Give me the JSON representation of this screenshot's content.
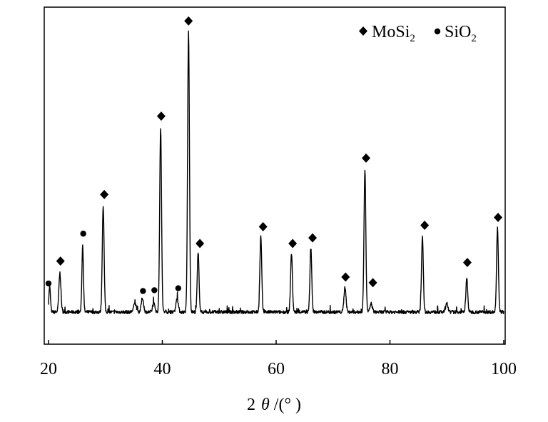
{
  "chart_data": {
    "type": "line",
    "x_tick_labels": [
      "20",
      "40",
      "60",
      "80",
      "100"
    ],
    "x_ticks": [
      20,
      40,
      60,
      80,
      100
    ],
    "xlim": [
      20,
      100
    ],
    "xlabel": {
      "prefix": "2",
      "theta": "θ",
      "suffix": " /(°  )"
    },
    "ylabel": "",
    "ylim": [
      0,
      1.1
    ],
    "grid": false,
    "legend": {
      "placement": "top-right",
      "entries": [
        {
          "symbol": "diamond",
          "base": "MoSi",
          "sub": "2"
        },
        {
          "symbol": "dot",
          "base": "SiO",
          "sub": "2"
        }
      ]
    },
    "peaks": [
      {
        "x": 20.2,
        "y": 0.09,
        "width": 0.14,
        "phase": "SiO2"
      },
      {
        "x": 22.0,
        "y": 0.14,
        "width": 0.18,
        "phase": "MoSi2"
      },
      {
        "x": 26.0,
        "y": 0.24,
        "width": 0.14,
        "phase": "SiO2"
      },
      {
        "x": 29.6,
        "y": 0.38,
        "width": 0.16,
        "phase": "MoSi2"
      },
      {
        "x": 35.2,
        "y": 0.03,
        "width": 0.25,
        "phase": ""
      },
      {
        "x": 36.5,
        "y": 0.05,
        "width": 0.2,
        "phase": "SiO2"
      },
      {
        "x": 38.5,
        "y": 0.03,
        "width": 0.2,
        "phase": "SiO2"
      },
      {
        "x": 39.7,
        "y": 0.66,
        "width": 0.16,
        "phase": "MoSi2"
      },
      {
        "x": 42.6,
        "y": 0.05,
        "width": 0.2,
        "phase": "SiO2"
      },
      {
        "x": 44.6,
        "y": 1.0,
        "width": 0.16,
        "phase": "MoSi2"
      },
      {
        "x": 46.3,
        "y": 0.21,
        "width": 0.16,
        "phase": "MoSi2"
      },
      {
        "x": 57.3,
        "y": 0.27,
        "width": 0.16,
        "phase": "MoSi2"
      },
      {
        "x": 62.7,
        "y": 0.21,
        "width": 0.16,
        "phase": "MoSi2"
      },
      {
        "x": 66.1,
        "y": 0.23,
        "width": 0.16,
        "phase": "MoSi2"
      },
      {
        "x": 72.1,
        "y": 0.09,
        "width": 0.18,
        "phase": "MoSi2"
      },
      {
        "x": 75.6,
        "y": 0.51,
        "width": 0.16,
        "phase": "MoSi2"
      },
      {
        "x": 76.7,
        "y": 0.03,
        "width": 0.2,
        "phase": "MoSi2"
      },
      {
        "x": 85.7,
        "y": 0.27,
        "width": 0.16,
        "phase": "MoSi2"
      },
      {
        "x": 90.0,
        "y": 0.03,
        "width": 0.2,
        "phase": ""
      },
      {
        "x": 93.5,
        "y": 0.12,
        "width": 0.16,
        "phase": "MoSi2"
      },
      {
        "x": 98.9,
        "y": 0.3,
        "width": 0.16,
        "phase": "MoSi2"
      }
    ],
    "markers": [
      {
        "symbol": "dot",
        "x": 20.0,
        "y": 0.102
      },
      {
        "symbol": "diamond",
        "x": 22.1,
        "y": 0.182
      },
      {
        "symbol": "dot",
        "x": 26.1,
        "y": 0.28
      },
      {
        "symbol": "diamond",
        "x": 29.8,
        "y": 0.42
      },
      {
        "symbol": "dot",
        "x": 36.6,
        "y": 0.075
      },
      {
        "symbol": "dot",
        "x": 38.6,
        "y": 0.078
      },
      {
        "symbol": "diamond",
        "x": 39.8,
        "y": 0.7
      },
      {
        "symbol": "dot",
        "x": 42.8,
        "y": 0.085
      },
      {
        "symbol": "diamond",
        "x": 44.6,
        "y": 1.04
      },
      {
        "symbol": "diamond",
        "x": 46.6,
        "y": 0.245
      },
      {
        "symbol": "diamond",
        "x": 57.7,
        "y": 0.305
      },
      {
        "symbol": "diamond",
        "x": 62.9,
        "y": 0.245
      },
      {
        "symbol": "diamond",
        "x": 66.4,
        "y": 0.265
      },
      {
        "symbol": "diamond",
        "x": 72.2,
        "y": 0.125
      },
      {
        "symbol": "diamond",
        "x": 75.8,
        "y": 0.55
      },
      {
        "symbol": "diamond",
        "x": 77.0,
        "y": 0.105
      },
      {
        "symbol": "diamond",
        "x": 86.1,
        "y": 0.31
      },
      {
        "symbol": "diamond",
        "x": 93.6,
        "y": 0.177
      },
      {
        "symbol": "diamond",
        "x": 99.0,
        "y": 0.338
      }
    ],
    "baseline_noise": 0.006,
    "colors": {
      "line": "#000000",
      "axes": "#000000",
      "background": "#ffffff"
    }
  }
}
